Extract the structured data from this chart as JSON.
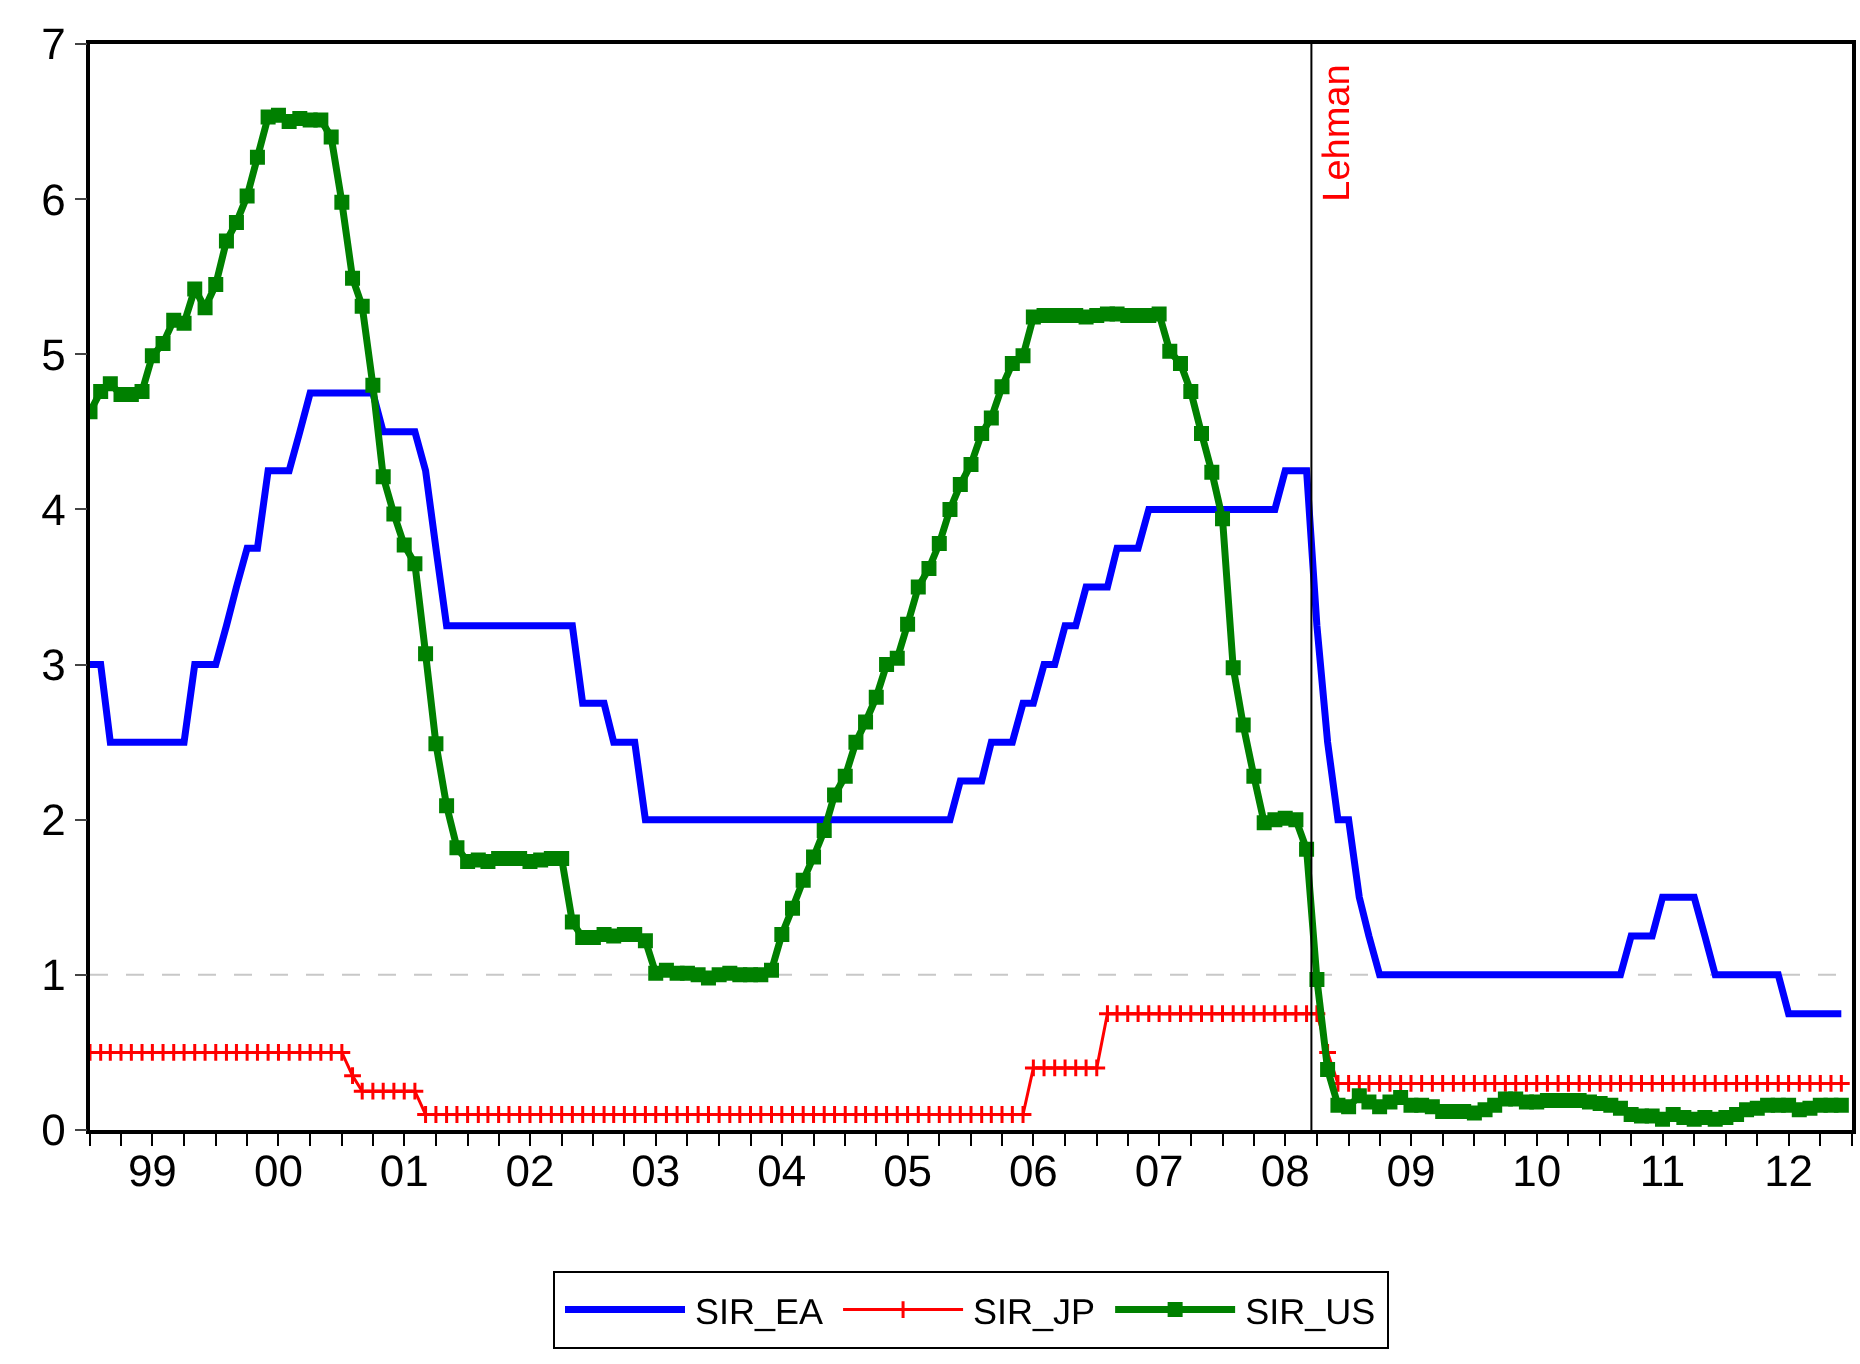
{
  "chart_data": {
    "type": "line",
    "x": [
      "1999-01",
      "1999-02",
      "1999-03",
      "1999-04",
      "1999-05",
      "1999-06",
      "1999-07",
      "1999-08",
      "1999-09",
      "1999-10",
      "1999-11",
      "1999-12",
      "2000-01",
      "2000-02",
      "2000-03",
      "2000-04",
      "2000-05",
      "2000-06",
      "2000-07",
      "2000-08",
      "2000-09",
      "2000-10",
      "2000-11",
      "2000-12",
      "2001-01",
      "2001-02",
      "2001-03",
      "2001-04",
      "2001-05",
      "2001-06",
      "2001-07",
      "2001-08",
      "2001-09",
      "2001-10",
      "2001-11",
      "2001-12",
      "2002-01",
      "2002-02",
      "2002-03",
      "2002-04",
      "2002-05",
      "2002-06",
      "2002-07",
      "2002-08",
      "2002-09",
      "2002-10",
      "2002-11",
      "2002-12",
      "2003-01",
      "2003-02",
      "2003-03",
      "2003-04",
      "2003-05",
      "2003-06",
      "2003-07",
      "2003-08",
      "2003-09",
      "2003-10",
      "2003-11",
      "2003-12",
      "2004-01",
      "2004-02",
      "2004-03",
      "2004-04",
      "2004-05",
      "2004-06",
      "2004-07",
      "2004-08",
      "2004-09",
      "2004-10",
      "2004-11",
      "2004-12",
      "2005-01",
      "2005-02",
      "2005-03",
      "2005-04",
      "2005-05",
      "2005-06",
      "2005-07",
      "2005-08",
      "2005-09",
      "2005-10",
      "2005-11",
      "2005-12",
      "2006-01",
      "2006-02",
      "2006-03",
      "2006-04",
      "2006-05",
      "2006-06",
      "2006-07",
      "2006-08",
      "2006-09",
      "2006-10",
      "2006-11",
      "2006-12",
      "2007-01",
      "2007-02",
      "2007-03",
      "2007-04",
      "2007-05",
      "2007-06",
      "2007-07",
      "2007-08",
      "2007-09",
      "2007-10",
      "2007-11",
      "2007-12",
      "2008-01",
      "2008-02",
      "2008-03",
      "2008-04",
      "2008-05",
      "2008-06",
      "2008-07",
      "2008-08",
      "2008-09",
      "2008-10",
      "2008-11",
      "2008-12",
      "2009-01",
      "2009-02",
      "2009-03",
      "2009-04",
      "2009-05",
      "2009-06",
      "2009-07",
      "2009-08",
      "2009-09",
      "2009-10",
      "2009-11",
      "2009-12",
      "2010-01",
      "2010-02",
      "2010-03",
      "2010-04",
      "2010-05",
      "2010-06",
      "2010-07",
      "2010-08",
      "2010-09",
      "2010-10",
      "2010-11",
      "2010-12",
      "2011-01",
      "2011-02",
      "2011-03",
      "2011-04",
      "2011-05",
      "2011-06",
      "2011-07",
      "2011-08",
      "2011-09",
      "2011-10",
      "2011-11",
      "2011-12",
      "2012-01",
      "2012-02",
      "2012-03",
      "2012-04",
      "2012-05",
      "2012-06",
      "2012-07",
      "2012-08",
      "2012-09",
      "2012-10",
      "2012-11",
      "2012-12"
    ],
    "series": [
      {
        "name": "SIR_EA",
        "color": "#0000ff",
        "marker": "none",
        "values": [
          3,
          3,
          2.5,
          2.5,
          2.5,
          2.5,
          2.5,
          2.5,
          2.5,
          2.5,
          3,
          3,
          3,
          3.25,
          3.5,
          3.75,
          3.75,
          4.25,
          4.25,
          4.25,
          4.5,
          4.75,
          4.75,
          4.75,
          4.75,
          4.75,
          4.75,
          4.75,
          4.5,
          4.5,
          4.5,
          4.5,
          4.25,
          3.75,
          3.25,
          3.25,
          3.25,
          3.25,
          3.25,
          3.25,
          3.25,
          3.25,
          3.25,
          3.25,
          3.25,
          3.25,
          3.25,
          2.75,
          2.75,
          2.75,
          2.5,
          2.5,
          2.5,
          2,
          2,
          2,
          2,
          2,
          2,
          2,
          2,
          2,
          2,
          2,
          2,
          2,
          2,
          2,
          2,
          2,
          2,
          2,
          2,
          2,
          2,
          2,
          2,
          2,
          2,
          2,
          2,
          2,
          2,
          2.25,
          2.25,
          2.25,
          2.5,
          2.5,
          2.5,
          2.75,
          2.75,
          3,
          3,
          3.25,
          3.25,
          3.5,
          3.5,
          3.5,
          3.75,
          3.75,
          3.75,
          4,
          4,
          4,
          4,
          4,
          4,
          4,
          4,
          4,
          4,
          4,
          4,
          4,
          4.25,
          4.25,
          4.25,
          3.25,
          2.5,
          2,
          2,
          1.5,
          1.25,
          1,
          1,
          1,
          1,
          1,
          1,
          1,
          1,
          1,
          1,
          1,
          1,
          1,
          1,
          1,
          1,
          1,
          1,
          1,
          1,
          1,
          1,
          1,
          1,
          1.25,
          1.25,
          1.25,
          1.5,
          1.5,
          1.5,
          1.5,
          1.25,
          1,
          1,
          1,
          1,
          1,
          1,
          1,
          0.75,
          0.75,
          0.75,
          0.75,
          0.75,
          0.75
        ]
      },
      {
        "name": "SIR_JP",
        "color": "#ff0000",
        "marker": "cross",
        "values": [
          0.5,
          0.5,
          0.5,
          0.5,
          0.5,
          0.5,
          0.5,
          0.5,
          0.5,
          0.5,
          0.5,
          0.5,
          0.5,
          0.5,
          0.5,
          0.5,
          0.5,
          0.5,
          0.5,
          0.5,
          0.5,
          0.5,
          0.5,
          0.5,
          0.5,
          0.35,
          0.25,
          0.25,
          0.25,
          0.25,
          0.25,
          0.25,
          0.1,
          0.1,
          0.1,
          0.1,
          0.1,
          0.1,
          0.1,
          0.1,
          0.1,
          0.1,
          0.1,
          0.1,
          0.1,
          0.1,
          0.1,
          0.1,
          0.1,
          0.1,
          0.1,
          0.1,
          0.1,
          0.1,
          0.1,
          0.1,
          0.1,
          0.1,
          0.1,
          0.1,
          0.1,
          0.1,
          0.1,
          0.1,
          0.1,
          0.1,
          0.1,
          0.1,
          0.1,
          0.1,
          0.1,
          0.1,
          0.1,
          0.1,
          0.1,
          0.1,
          0.1,
          0.1,
          0.1,
          0.1,
          0.1,
          0.1,
          0.1,
          0.1,
          0.1,
          0.1,
          0.1,
          0.1,
          0.1,
          0.1,
          0.4,
          0.4,
          0.4,
          0.4,
          0.4,
          0.4,
          0.4,
          0.75,
          0.75,
          0.75,
          0.75,
          0.75,
          0.75,
          0.75,
          0.75,
          0.75,
          0.75,
          0.75,
          0.75,
          0.75,
          0.75,
          0.75,
          0.75,
          0.75,
          0.75,
          0.75,
          0.75,
          0.75,
          0.5,
          0.3,
          0.3,
          0.3,
          0.3,
          0.3,
          0.3,
          0.3,
          0.3,
          0.3,
          0.3,
          0.3,
          0.3,
          0.3,
          0.3,
          0.3,
          0.3,
          0.3,
          0.3,
          0.3,
          0.3,
          0.3,
          0.3,
          0.3,
          0.3,
          0.3,
          0.3,
          0.3,
          0.3,
          0.3,
          0.3,
          0.3,
          0.3,
          0.3,
          0.3,
          0.3,
          0.3,
          0.3,
          0.3,
          0.3,
          0.3,
          0.3,
          0.3,
          0.3,
          0.3,
          0.3,
          0.3,
          0.3,
          0.3,
          0.3
        ]
      },
      {
        "name": "SIR_US",
        "color": "#008000",
        "marker": "square",
        "values": [
          4.63,
          4.76,
          4.81,
          4.74,
          4.74,
          4.76,
          4.99,
          5.07,
          5.22,
          5.2,
          5.42,
          5.3,
          5.45,
          5.73,
          5.85,
          6.02,
          6.27,
          6.53,
          6.54,
          6.5,
          6.52,
          6.51,
          6.51,
          6.4,
          5.98,
          5.49,
          5.31,
          4.8,
          4.21,
          3.97,
          3.77,
          3.65,
          3.07,
          2.49,
          2.09,
          1.82,
          1.73,
          1.74,
          1.73,
          1.75,
          1.75,
          1.75,
          1.73,
          1.74,
          1.75,
          1.75,
          1.34,
          1.24,
          1.24,
          1.26,
          1.25,
          1.26,
          1.26,
          1.22,
          1.01,
          1.03,
          1.01,
          1.01,
          1,
          0.98,
          1,
          1.01,
          1,
          1,
          1,
          1.03,
          1.26,
          1.43,
          1.61,
          1.76,
          1.93,
          2.16,
          2.28,
          2.5,
          2.63,
          2.79,
          3,
          3.04,
          3.26,
          3.5,
          3.62,
          3.78,
          4,
          4.16,
          4.29,
          4.49,
          4.59,
          4.79,
          4.94,
          4.99,
          5.24,
          5.25,
          5.25,
          5.25,
          5.25,
          5.24,
          5.25,
          5.26,
          5.26,
          5.25,
          5.25,
          5.25,
          5.26,
          5.02,
          4.94,
          4.76,
          4.49,
          4.24,
          3.94,
          2.98,
          2.61,
          2.28,
          1.98,
          2,
          2.01,
          2,
          1.81,
          0.97,
          0.39,
          0.16,
          0.15,
          0.22,
          0.18,
          0.15,
          0.18,
          0.21,
          0.16,
          0.16,
          0.15,
          0.12,
          0.12,
          0.12,
          0.11,
          0.13,
          0.16,
          0.2,
          0.2,
          0.18,
          0.18,
          0.19,
          0.19,
          0.19,
          0.19,
          0.18,
          0.17,
          0.16,
          0.14,
          0.1,
          0.09,
          0.09,
          0.07,
          0.1,
          0.08,
          0.07,
          0.08,
          0.07,
          0.08,
          0.1,
          0.13,
          0.14,
          0.16,
          0.16,
          0.16,
          0.13,
          0.14,
          0.16,
          0.16,
          0.16
        ]
      }
    ],
    "xlim": [
      "1999-01",
      "2013-01"
    ],
    "xticks": [
      {
        "value": "1999-07",
        "label": "99"
      },
      {
        "value": "2000-07",
        "label": "00"
      },
      {
        "value": "2001-07",
        "label": "01"
      },
      {
        "value": "2002-07",
        "label": "02"
      },
      {
        "value": "2003-07",
        "label": "03"
      },
      {
        "value": "2004-07",
        "label": "04"
      },
      {
        "value": "2005-07",
        "label": "05"
      },
      {
        "value": "2006-07",
        "label": "06"
      },
      {
        "value": "2007-07",
        "label": "07"
      },
      {
        "value": "2008-07",
        "label": "08"
      },
      {
        "value": "2009-07",
        "label": "09"
      },
      {
        "value": "2010-07",
        "label": "10"
      },
      {
        "value": "2011-07",
        "label": "11"
      },
      {
        "value": "2012-07",
        "label": "12"
      }
    ],
    "ylim": [
      0,
      7
    ],
    "yticks": [
      0,
      1,
      2,
      3,
      4,
      5,
      6,
      7
    ],
    "ref_lines": [
      {
        "axis": "y",
        "value": 1,
        "color": "#c8c8c8",
        "line_style": "dashed"
      },
      {
        "axis": "x",
        "value": "2008-09-15",
        "label": "Lehman",
        "color": "#000000",
        "line_style": "solid"
      }
    ],
    "grid": false,
    "legend": "bottom"
  }
}
